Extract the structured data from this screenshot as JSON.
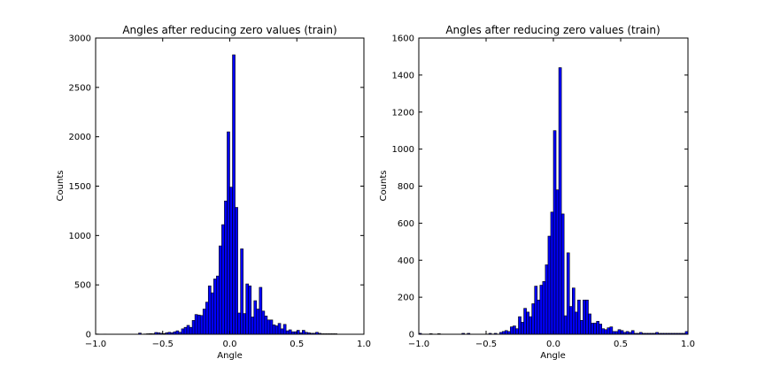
{
  "figure": {
    "background": "#ffffff",
    "bar_color": "#0000ff",
    "edge_color": "#000000"
  },
  "chart_data": [
    {
      "type": "bar",
      "title": "Angles after reducing zero values (train)",
      "xlabel": "Angle",
      "ylabel": "Counts",
      "xlim": [
        -1.0,
        1.0
      ],
      "ylim": [
        0,
        3000
      ],
      "xticks": [
        "−1.0",
        "−0.5",
        "0.0",
        "0.5",
        "1.0"
      ],
      "yticks": [
        "0",
        "500",
        "1000",
        "1500",
        "2000",
        "2500",
        "3000"
      ],
      "bin_start": -1.0,
      "bin_width": 0.02,
      "values": [
        3,
        0,
        0,
        2,
        0,
        0,
        0,
        0,
        0,
        0,
        0,
        0,
        0,
        0,
        0,
        0,
        12,
        0,
        3,
        5,
        6,
        5,
        18,
        15,
        10,
        7,
        15,
        20,
        15,
        25,
        35,
        20,
        55,
        70,
        90,
        70,
        140,
        200,
        195,
        190,
        255,
        325,
        490,
        420,
        560,
        590,
        895,
        1110,
        1350,
        2050,
        1490,
        2830,
        1285,
        215,
        865,
        210,
        510,
        490,
        175,
        340,
        255,
        475,
        235,
        185,
        145,
        145,
        95,
        85,
        110,
        55,
        100,
        35,
        45,
        25,
        25,
        40,
        15,
        40,
        20,
        15,
        10,
        10,
        20,
        10,
        5,
        5,
        5,
        5,
        5,
        5,
        0,
        0,
        0,
        0,
        0,
        0,
        0,
        0,
        0,
        0
      ]
    },
    {
      "type": "bar",
      "title": "Angles after reducing zero values (train)",
      "xlabel": "Angle",
      "ylabel": "Counts",
      "xlim": [
        -1.0,
        1.0
      ],
      "ylim": [
        0,
        1600
      ],
      "xticks": [
        "−1.0",
        "−0.5",
        "0.0",
        "0.5",
        "1.0"
      ],
      "yticks": [
        "0",
        "200",
        "400",
        "600",
        "800",
        "1000",
        "1200",
        "1400",
        "1600"
      ],
      "bin_start": -1.0,
      "bin_width": 0.02,
      "values": [
        5,
        0,
        0,
        0,
        3,
        0,
        0,
        3,
        0,
        0,
        0,
        0,
        0,
        0,
        0,
        0,
        5,
        0,
        5,
        0,
        0,
        0,
        0,
        0,
        0,
        0,
        5,
        0,
        5,
        0,
        10,
        15,
        20,
        15,
        40,
        45,
        30,
        95,
        65,
        140,
        120,
        95,
        165,
        260,
        185,
        265,
        285,
        375,
        530,
        660,
        1100,
        780,
        1440,
        650,
        100,
        440,
        150,
        250,
        120,
        185,
        75,
        185,
        185,
        110,
        60,
        60,
        70,
        55,
        30,
        25,
        35,
        40,
        15,
        15,
        25,
        20,
        10,
        15,
        10,
        20,
        5,
        5,
        10,
        5,
        5,
        5,
        5,
        5,
        10,
        5,
        5,
        5,
        5,
        5,
        5,
        5,
        5,
        5,
        5,
        15
      ]
    }
  ]
}
